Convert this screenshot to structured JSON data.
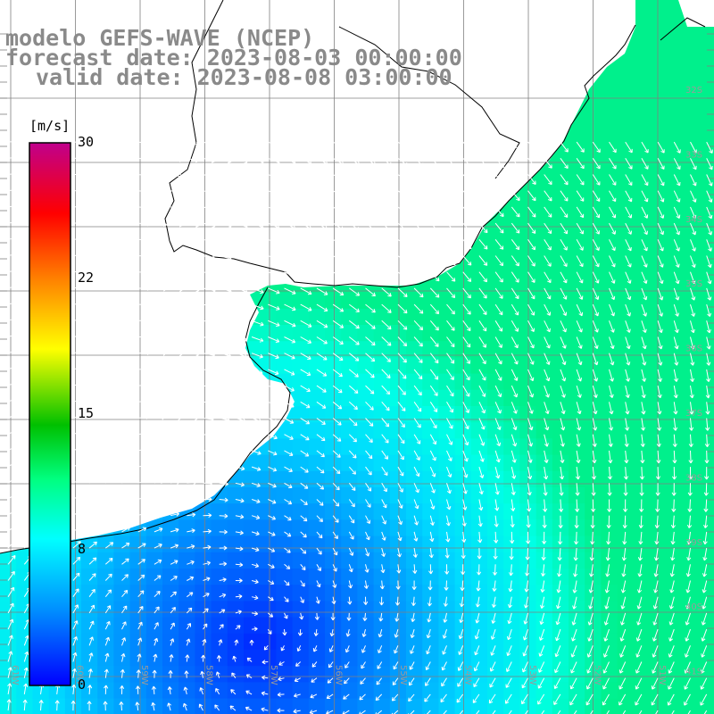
{
  "title": {
    "model": "modelo GEFS-WAVE (NCEP)",
    "forecast": "forecast date: 2023-08-03 00:00:00",
    "valid": "valid date: 2023-08-08 03:00:00"
  },
  "colorbar": {
    "unit": "[m/s]",
    "ticks": [
      "30",
      "22",
      "15",
      "8",
      "0"
    ],
    "colors": [
      "#0000ff",
      "#0090ff",
      "#00ffff",
      "#00ff60",
      "#00c000",
      "#ffff00",
      "#ff9000",
      "#ff0000",
      "#cc0090"
    ]
  },
  "lat_labels": [
    "32S",
    "33S",
    "34S",
    "35S",
    "36S",
    "37S",
    "38S",
    "39S",
    "40S",
    "41S"
  ],
  "lon_labels": [
    "61W",
    "60W",
    "59W",
    "58W",
    "57W",
    "56W",
    "55W",
    "54W",
    "53W",
    "52W",
    "51W"
  ],
  "colors": {
    "land": "#ffffff",
    "grid": "#808080",
    "coast": "#000000",
    "arrow": "#ffffff"
  }
}
